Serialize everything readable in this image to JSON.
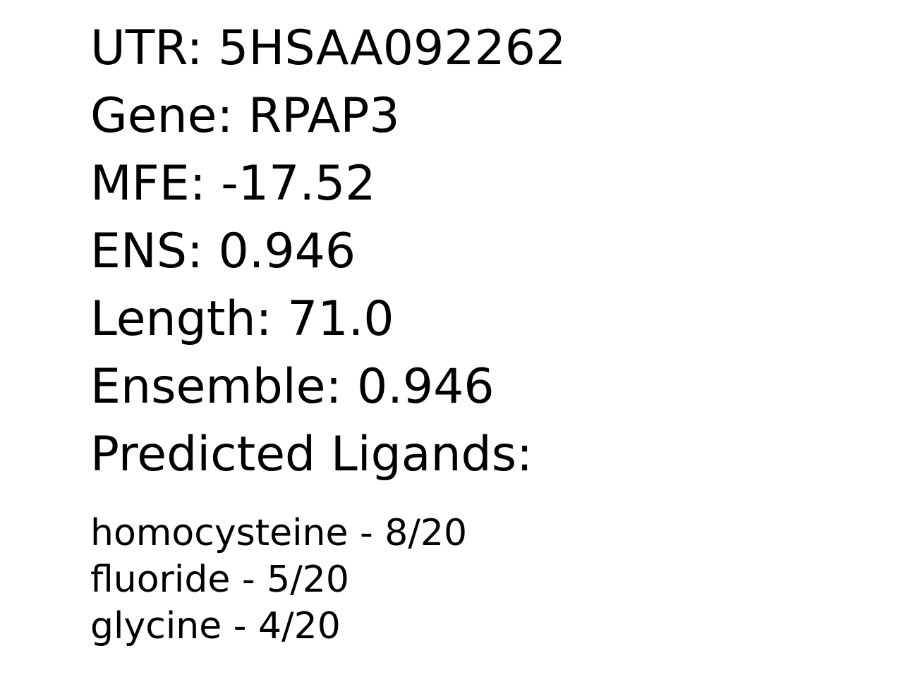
{
  "record": {
    "utr": "UTR: 5HSAA092262",
    "gene": "Gene: RPAP3",
    "mfe": "MFE: -17.52",
    "ens": "ENS: 0.946",
    "length": "Length: 71.0",
    "ensemble": "Ensemble: 0.946",
    "ligands_heading": "Predicted Ligands:"
  },
  "ligands": [
    "homocysteine - 8/20",
    "fluoride - 5/20",
    "glycine - 4/20"
  ]
}
